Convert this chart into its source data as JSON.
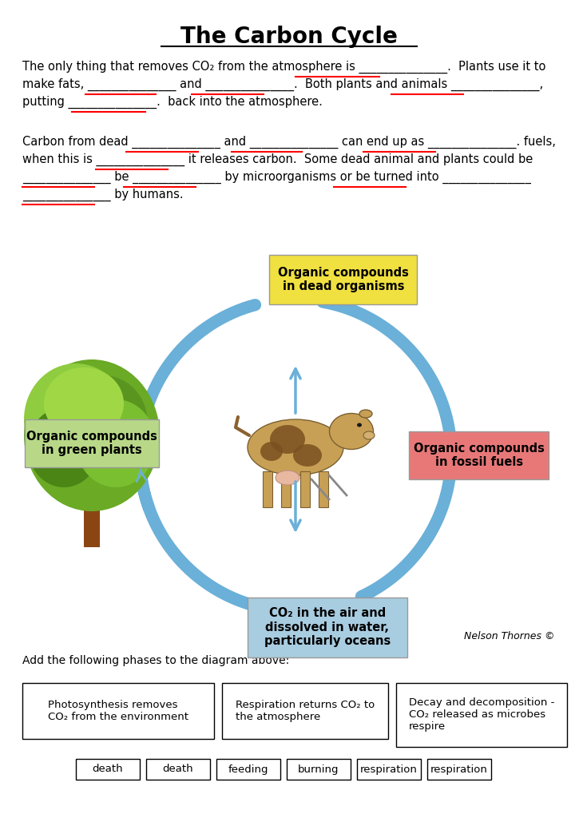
{
  "title": "The Carbon Cycle",
  "bg_color": "#ffffff",
  "text_color": "#000000",
  "underline_color": "#ff0000",
  "p1_line1": "The only thing that removes CO₂ from the atmosphere is _______________.  Plants use it to",
  "p1_line2": "make fats, _______________ and _______________.  Both plants and animals _______________,",
  "p1_line3": "putting _______________.  back into the atmosphere.",
  "p2_line1": "Carbon from dead _______________ and _______________ can end up as _______________. fuels,",
  "p2_line2": "when this is _______________ it releases carbon.  Some dead animal and plants could be",
  "p2_line3": "_______________ be _______________ by microorganisms or be turned into _______________",
  "p2_line4": "_______________ by humans.",
  "diagram_instruction": "Add the following phases to the diagram above:",
  "box_labels_row1_0": "Photosynthesis removes\nCO₂ from the environment",
  "box_labels_row1_1": "Respiration returns CO₂ to\nthe atmosphere",
  "box_labels_row1_2": "Decay and decomposition -\nCO₂ released as microbes\nrespire",
  "box_labels_row2": [
    "death",
    "death",
    "feeding",
    "burning",
    "respiration",
    "respiration"
  ],
  "nelson_thornes": "Nelson Thornes ©",
  "arc_color": "#6ab0d8",
  "arc_lw": 11,
  "top_box_color": "#f0e040",
  "right_box_color": "#e87878",
  "bottom_box_color": "#a8cce0",
  "left_box_color": "#b8d888"
}
